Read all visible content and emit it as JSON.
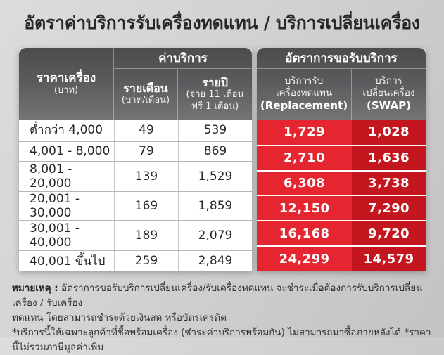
{
  "title": "อัตราค่าบริการรับเครื่องทดแทน / บริการเปลี่ยนเครื่อง",
  "colors": {
    "replacement_red": "#E52530",
    "swap_red": "#C4161F",
    "header_gray": "#58585B",
    "background_silver": "#D0D0D2"
  },
  "table": {
    "header": {
      "price_main": "ราคาเครื่อง",
      "price_sub": "(บาท)",
      "fee_group": "ค่าบริการ",
      "monthly_main": "รายเดือน",
      "monthly_sub": "(บาท/เดือน)",
      "yearly_main": "รายปี",
      "yearly_sub": "(จ่าย 11 เดือน ฟรี 1 เดือน)",
      "rate_group": "อัตราการขอรับบริการ",
      "replacement_line1": "บริการรับ",
      "replacement_line2": "เครื่องทดแทน",
      "replacement_sub": "(Replacement)",
      "swap_line1": "บริการ",
      "swap_line2": "เปลี่ยนเครื่อง",
      "swap_sub": "(SWAP)"
    },
    "rows": [
      {
        "price_range": "ต่ำกว่า 4,000",
        "monthly": "49",
        "yearly": "539",
        "replacement": "1,729",
        "swap": "1,028"
      },
      {
        "price_range": "4,001 - 8,000",
        "monthly": "79",
        "yearly": "869",
        "replacement": "2,710",
        "swap": "1,636"
      },
      {
        "price_range": "8,001 - 20,000",
        "monthly": "139",
        "yearly": "1,529",
        "replacement": "6,308",
        "swap": "3,738"
      },
      {
        "price_range": "20,001 - 30,000",
        "monthly": "169",
        "yearly": "1,859",
        "replacement": "12,150",
        "swap": "7,290"
      },
      {
        "price_range": "30,001 - 40,000",
        "monthly": "189",
        "yearly": "2,079",
        "replacement": "16,168",
        "swap": "9,720"
      },
      {
        "price_range": "40,001 ขึ้นไป",
        "monthly": "259",
        "yearly": "2,849",
        "replacement": "24,299",
        "swap": "14,579"
      }
    ]
  },
  "notes": {
    "label": "หมายเหตุ :",
    "line1": "อัตราการขอรับบริการเปลี่ยนเครื่อง/รับเครื่องทดแทน จะชำระเมื่อต้องการรับบริการเปลี่ยนเครื่อง / รับเครื่อง",
    "line2": "ทดแทน โดยสามารถชำระด้วยเงินสด หรือบัตรเครดิต",
    "line3": "*บริการนี้ให้เฉพาะลูกค้าที่ซื้อพร้อมเครื่อง (ชำระค่าบริการพร้อมกัน) ไม่สามารถมาซื้อภายหลังได้ *ราคานี้ไม่รวมภาษีมูลค่าเพิ่ม"
  },
  "chart_data": {
    "type": "table",
    "title": "อัตราค่าบริการรับเครื่องทดแทน / บริการเปลี่ยนเครื่อง",
    "columns": [
      "ราคาเครื่อง (บาท)",
      "ค่าบริการ รายเดือน (บาท/เดือน)",
      "ค่าบริการ รายปี (จ่าย 11 เดือน ฟรี 1 เดือน)",
      "อัตราการขอรับบริการ บริการรับเครื่องทดแทน (Replacement)",
      "อัตราการขอรับบริการ บริการเปลี่ยนเครื่อง (SWAP)"
    ],
    "rows": [
      [
        "ต่ำกว่า 4,000",
        49,
        539,
        1729,
        1028
      ],
      [
        "4,001 - 8,000",
        79,
        869,
        2710,
        1636
      ],
      [
        "8,001 - 20,000",
        139,
        1529,
        6308,
        3738
      ],
      [
        "20,001 - 30,000",
        169,
        1859,
        12150,
        7290
      ],
      [
        "30,001 - 40,000",
        189,
        2079,
        16168,
        9720
      ],
      [
        "40,001 ขึ้นไป",
        259,
        2849,
        24299,
        14579
      ]
    ]
  }
}
